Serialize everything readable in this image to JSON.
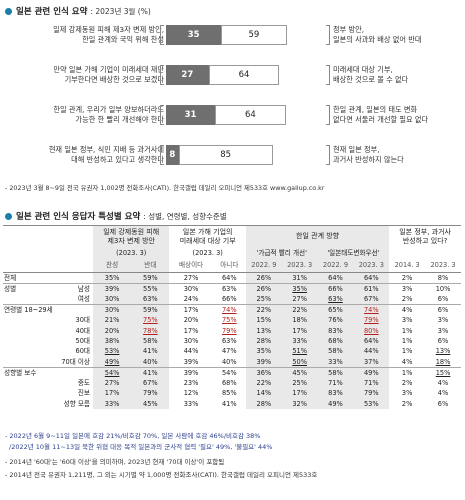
{
  "section1": {
    "title": "일본 관련 인식 요약",
    "subtitle": ": 2023년 3월 (%)",
    "bars": [
      {
        "left": "일제 강제동원 피해 제3자 변제 방안,\n한일 관계와 국익 위해 찬성",
        "a": 35,
        "b": 59,
        "right": "정부 방안,\n일본의 사과와 배상 없어 반대"
      },
      {
        "left": "만약 일본 가해 기업이 미래세대 재단\n기부한다면 배상한 것으로 보겠다",
        "a": 27,
        "b": 64,
        "right": "미래세대 대상 기부,\n배상한 것으로 볼 수 없다"
      },
      {
        "left": "한일 관계, 우리가 일부 양보하더라도\n가능한 한 빨리 개선해야 한다",
        "a": 31,
        "b": 64,
        "right": "한일 관계, 일본의 태도 변화\n없다면 서둘러 개선할 필요 없다"
      },
      {
        "left": "현재 일본 정부, 식민 지배 등 과거사에\n대해 반성하고 있다고 생각한다",
        "a": 8,
        "b": 85,
        "right": "현재 일본 정부,\n과거사 반성하지 않는다"
      }
    ],
    "source": "- 2023년 3월 8~9일 전국 유권자 1,002명 전화조사(CATI). 한국갤럽 데일리 오피니언 제533호 www.gallup.co.kr"
  },
  "section2": {
    "title": "일본 관련 인식 응답자 특성별 요약",
    "subtitle": ": 성별, 연령별, 성향수준별",
    "col_groups": [
      {
        "label": "일제 강제동원 피해\n제3자 변제 방안",
        "date": "(2023. 3)"
      },
      {
        "label": "일본 가해 기업의\n미래세대 대상 기부",
        "date": "(2023. 3)"
      },
      {
        "label": "한일 관계 방향",
        "date": ""
      },
      {
        "label": "일본 정부, 과거사\n반성하고 있다?",
        "date": ""
      }
    ],
    "sub_groups": [
      "'가급적 빨리 개선'",
      "'일본태도변화우선'"
    ],
    "col_headers": [
      "찬성",
      "반대",
      "배상이다",
      "아니다",
      "2022. 9",
      "2023. 3",
      "2022. 9",
      "2023. 3",
      "2014. 3",
      "2023. 3"
    ],
    "rows": [
      {
        "label": "전체",
        "sub": "",
        "vals": [
          "35%",
          "59%",
          "27%",
          "64%",
          "26%",
          "31%",
          "64%",
          "64%",
          "2%",
          "8%"
        ],
        "group_start": true
      },
      {
        "label": "성별",
        "sub": "남성",
        "vals": [
          "39%",
          "55%",
          "30%",
          "63%",
          "26%",
          "35%",
          "66%",
          "61%",
          "3%",
          "10%"
        ],
        "group_start": true
      },
      {
        "label": "",
        "sub": "여성",
        "vals": [
          "30%",
          "63%",
          "24%",
          "66%",
          "25%",
          "27%",
          "63%",
          "67%",
          "2%",
          "6%"
        ]
      },
      {
        "label": "연령별 18~29세",
        "sub": "",
        "vals": [
          "30%",
          "59%",
          "17%",
          "74%",
          "22%",
          "22%",
          "65%",
          "74%",
          "4%",
          "6%"
        ],
        "group_start": true
      },
      {
        "label": "",
        "sub": "30대",
        "vals": [
          "21%",
          "75%",
          "20%",
          "75%",
          "15%",
          "18%",
          "76%",
          "79%",
          "3%",
          "3%"
        ]
      },
      {
        "label": "",
        "sub": "40대",
        "vals": [
          "20%",
          "78%",
          "17%",
          "79%",
          "13%",
          "17%",
          "83%",
          "80%",
          "1%",
          "3%"
        ]
      },
      {
        "label": "",
        "sub": "50대",
        "vals": [
          "38%",
          "58%",
          "30%",
          "63%",
          "28%",
          "33%",
          "68%",
          "64%",
          "1%",
          "6%"
        ]
      },
      {
        "label": "",
        "sub": "60대",
        "vals": [
          "53%",
          "41%",
          "44%",
          "47%",
          "35%",
          "51%",
          "58%",
          "44%",
          "1%",
          "13%"
        ]
      },
      {
        "label": "",
        "sub": "70대 이상",
        "vals": [
          "49%",
          "40%",
          "39%",
          "40%",
          "39%",
          "50%",
          "33%",
          "37%",
          "4%",
          "18%"
        ]
      },
      {
        "label": "성향별 보수",
        "sub": "",
        "vals": [
          "54%",
          "41%",
          "39%",
          "54%",
          "36%",
          "45%",
          "58%",
          "49%",
          "1%",
          "15%"
        ],
        "group_start": true
      },
      {
        "label": "",
        "sub": "중도",
        "vals": [
          "27%",
          "67%",
          "23%",
          "68%",
          "22%",
          "25%",
          "71%",
          "71%",
          "2%",
          "4%"
        ]
      },
      {
        "label": "",
        "sub": "진보",
        "vals": [
          "17%",
          "79%",
          "12%",
          "85%",
          "14%",
          "17%",
          "83%",
          "79%",
          "3%",
          "4%"
        ]
      },
      {
        "label": "",
        "sub": "성향 모름",
        "vals": [
          "33%",
          "45%",
          "33%",
          "41%",
          "28%",
          "32%",
          "49%",
          "53%",
          "2%",
          "6%"
        ]
      }
    ],
    "notes": [
      "- 2022년 6월 9~11일 일본에 호감 21%/비호감 70%, 일본 사람에 호감 46%/비호감 38%",
      "/2022년 10월 11~13일 북한 위협 대응 목적 일본과의 군사적 협력 '필요' 49%, '불필요' 44%",
      "- 2014년 '60대'는 '60대 이상'을 의미하며, 2023년 현재 '70대 이상'이 포함됨",
      "- 2014년 전국 유권자 1,211명, 그 외는 시기별 약 1,000명 전화조사(CATI). 한국갤럽 데일리 오피니언 제533호"
    ]
  }
}
